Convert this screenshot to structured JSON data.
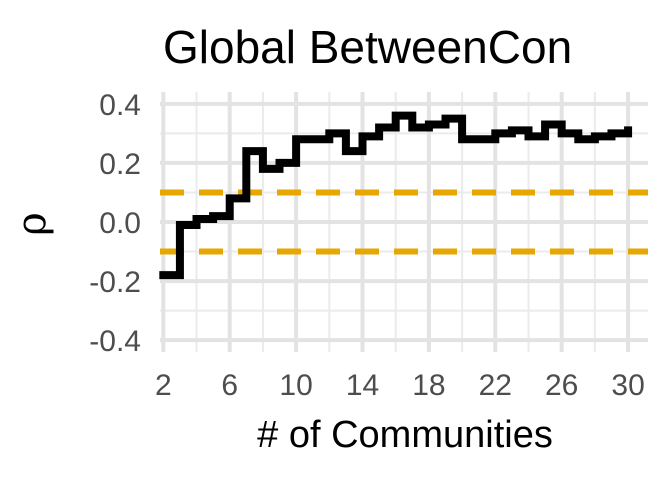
{
  "chart_data": {
    "type": "line",
    "step": true,
    "title": "Global BetweenCon",
    "xlabel": "# of Communities",
    "ylabel": "ρ",
    "xlim": [
      1.8,
      31.2
    ],
    "ylim": [
      -0.44,
      0.44
    ],
    "xticks": [
      2,
      6,
      10,
      14,
      18,
      22,
      26,
      30
    ],
    "yticks": [
      -0.4,
      -0.2,
      0.0,
      0.2,
      0.4
    ],
    "ytick_labels": [
      "-0.4",
      "-0.2",
      "0.0",
      "0.2",
      "0.4"
    ],
    "grid": true,
    "series": [
      {
        "color": "#000000",
        "x": [
          2,
          3,
          4,
          5,
          6,
          7,
          8,
          9,
          10,
          11,
          12,
          13,
          14,
          15,
          16,
          17,
          18,
          19,
          20,
          21,
          22,
          23,
          24,
          25,
          26,
          27,
          28,
          29,
          30
        ],
        "y": [
          -0.18,
          -0.01,
          0.01,
          0.02,
          0.08,
          0.24,
          0.18,
          0.2,
          0.28,
          0.28,
          0.3,
          0.24,
          0.29,
          0.32,
          0.36,
          0.32,
          0.33,
          0.35,
          0.28,
          0.28,
          0.3,
          0.31,
          0.29,
          0.33,
          0.3,
          0.28,
          0.29,
          0.3,
          0.31
        ]
      }
    ],
    "reference_lines": [
      {
        "y": 0.1,
        "style": "dashed",
        "color": "#E6A800"
      },
      {
        "y": -0.1,
        "style": "dashed",
        "color": "#E6A800"
      }
    ]
  }
}
